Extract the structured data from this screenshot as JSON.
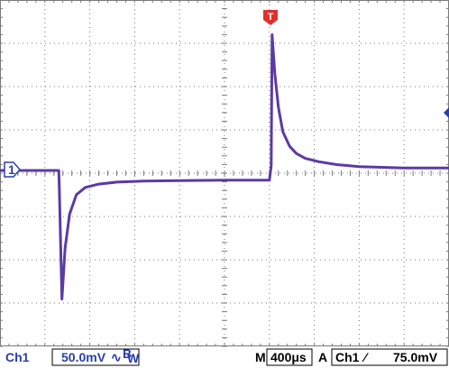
{
  "channel": {
    "marker": "1",
    "label": "Ch1",
    "scale": "50.0mV",
    "bw_symbol": "∿",
    "bw_sub": "B",
    "bw_sub2": "W",
    "color": "#5b3aa6"
  },
  "timebase": {
    "mode": "M",
    "scale": "400μs"
  },
  "trigger": {
    "marker": "T",
    "mode": "A",
    "source": "Ch1",
    "slope_symbol": "∕",
    "level": "75.0mV",
    "marker_color": "#e0302c",
    "level_marker_color": "#2b3fa8"
  },
  "display": {
    "grid_color": "#7a7a7a",
    "background": "#ffffff",
    "h_divisions": 10,
    "v_divisions": 8
  },
  "chart_data": {
    "type": "line",
    "x_unit": "div",
    "y_unit": "div",
    "xlim": [
      0,
      10
    ],
    "ylim": [
      -4,
      4
    ],
    "series": [
      {
        "name": "",
        "x": [
          0,
          1.31,
          1.32,
          1.38,
          1.45,
          1.55,
          1.7,
          1.9,
          2.2,
          2.6,
          3.2,
          4.0,
          5.0,
          6.0,
          6.04,
          6.06,
          6.12,
          6.2,
          6.3,
          6.45,
          6.6,
          6.8,
          7.1,
          7.5,
          8.0,
          9.0,
          10
        ],
        "y": [
          0,
          0,
          -0.3,
          -2.65,
          -1.6,
          -0.9,
          -0.5,
          -0.35,
          -0.28,
          -0.24,
          -0.22,
          -0.21,
          -0.2,
          -0.2,
          0.1,
          2.8,
          2.0,
          1.3,
          0.8,
          0.5,
          0.35,
          0.25,
          0.18,
          0.12,
          0.08,
          0.05,
          0.05
        ]
      }
    ]
  }
}
